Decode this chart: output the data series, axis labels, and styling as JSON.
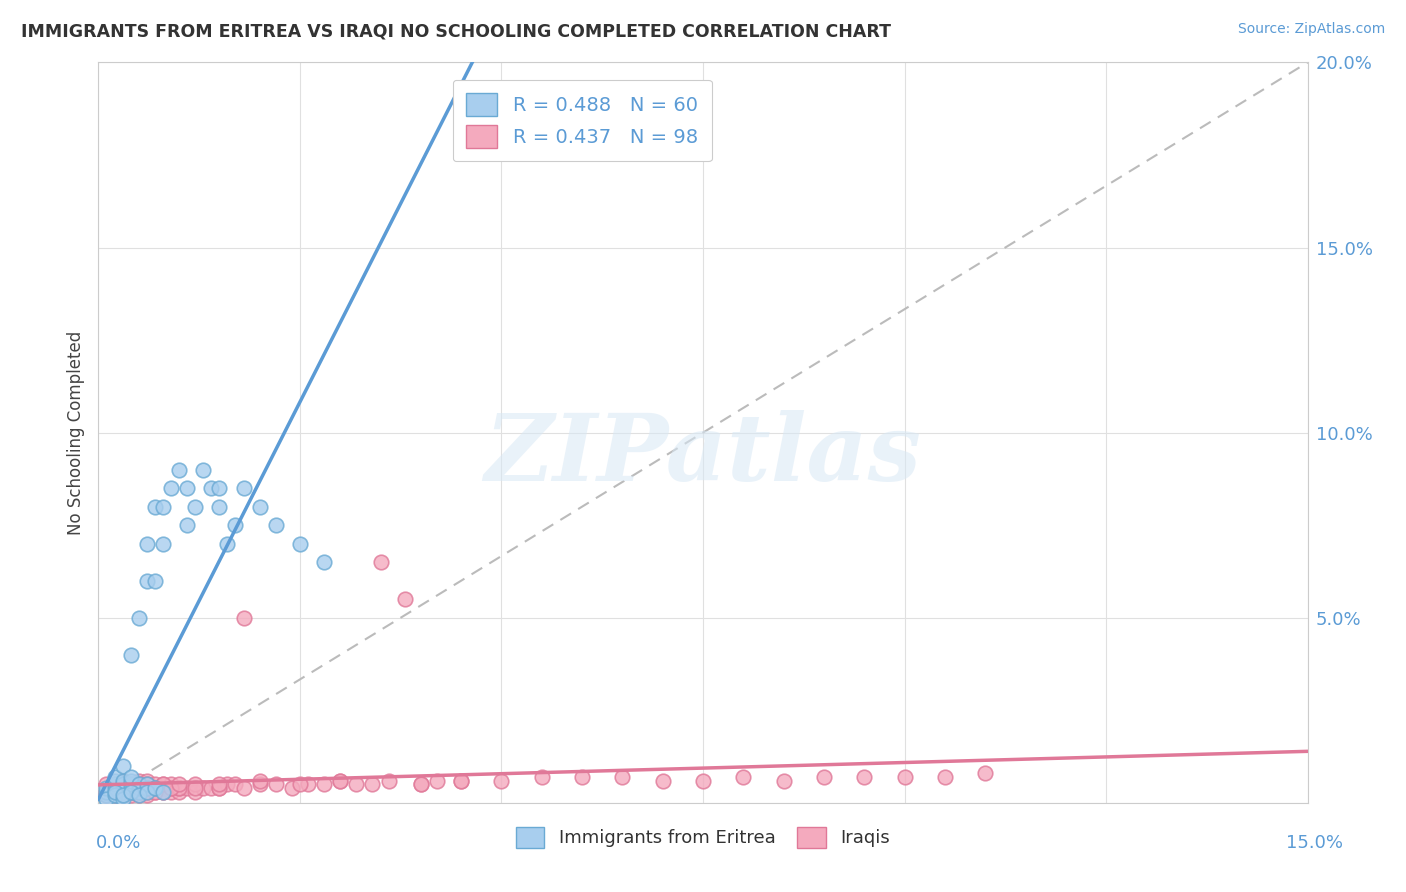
{
  "title": "IMMIGRANTS FROM ERITREA VS IRAQI NO SCHOOLING COMPLETED CORRELATION CHART",
  "source": "Source: ZipAtlas.com",
  "ylabel": "No Schooling Completed",
  "xlim": [
    0.0,
    0.15
  ],
  "ylim": [
    0.0,
    0.2
  ],
  "color_eritrea": "#A8CEEE",
  "color_eritrea_edge": "#6AAAD4",
  "color_eritrea_line": "#5B9BD5",
  "color_iraq": "#F4AABE",
  "color_iraq_edge": "#E07898",
  "color_iraq_line": "#E07898",
  "background_color": "#FFFFFF",
  "watermark_text": "ZIPatlas",
  "eritrea_x": [
    0.001,
    0.001,
    0.001,
    0.002,
    0.002,
    0.002,
    0.002,
    0.002,
    0.002,
    0.003,
    0.003,
    0.003,
    0.003,
    0.003,
    0.003,
    0.004,
    0.004,
    0.004,
    0.004,
    0.004,
    0.004,
    0.005,
    0.005,
    0.005,
    0.005,
    0.006,
    0.006,
    0.006,
    0.006,
    0.007,
    0.007,
    0.007,
    0.008,
    0.008,
    0.009,
    0.01,
    0.011,
    0.011,
    0.012,
    0.013,
    0.014,
    0.015,
    0.015,
    0.016,
    0.017,
    0.018,
    0.02,
    0.022,
    0.025,
    0.028,
    0.001,
    0.002,
    0.002,
    0.003,
    0.003,
    0.004,
    0.005,
    0.006,
    0.007,
    0.008
  ],
  "eritrea_y": [
    0.002,
    0.003,
    0.004,
    0.002,
    0.003,
    0.004,
    0.005,
    0.006,
    0.007,
    0.002,
    0.003,
    0.004,
    0.005,
    0.006,
    0.01,
    0.003,
    0.004,
    0.005,
    0.006,
    0.007,
    0.04,
    0.003,
    0.004,
    0.005,
    0.05,
    0.004,
    0.005,
    0.06,
    0.07,
    0.004,
    0.06,
    0.08,
    0.07,
    0.08,
    0.085,
    0.09,
    0.075,
    0.085,
    0.08,
    0.09,
    0.085,
    0.08,
    0.085,
    0.07,
    0.075,
    0.085,
    0.08,
    0.075,
    0.07,
    0.065,
    0.001,
    0.002,
    0.003,
    0.001,
    0.002,
    0.003,
    0.002,
    0.003,
    0.004,
    0.003
  ],
  "iraq_x": [
    0.001,
    0.001,
    0.001,
    0.002,
    0.002,
    0.002,
    0.002,
    0.003,
    0.003,
    0.003,
    0.003,
    0.003,
    0.004,
    0.004,
    0.004,
    0.004,
    0.005,
    0.005,
    0.005,
    0.005,
    0.005,
    0.006,
    0.006,
    0.006,
    0.006,
    0.006,
    0.007,
    0.007,
    0.007,
    0.008,
    0.008,
    0.008,
    0.009,
    0.009,
    0.01,
    0.01,
    0.011,
    0.012,
    0.013,
    0.014,
    0.015,
    0.016,
    0.017,
    0.018,
    0.02,
    0.022,
    0.024,
    0.026,
    0.028,
    0.03,
    0.032,
    0.034,
    0.036,
    0.038,
    0.04,
    0.042,
    0.045,
    0.05,
    0.055,
    0.06,
    0.065,
    0.07,
    0.075,
    0.08,
    0.085,
    0.09,
    0.095,
    0.1,
    0.105,
    0.11,
    0.003,
    0.004,
    0.005,
    0.006,
    0.007,
    0.008,
    0.009,
    0.01,
    0.012,
    0.015,
    0.018,
    0.02,
    0.025,
    0.03,
    0.035,
    0.04,
    0.045,
    0.002,
    0.003,
    0.004,
    0.005,
    0.006,
    0.007,
    0.008,
    0.009,
    0.01,
    0.012,
    0.015
  ],
  "iraq_y": [
    0.002,
    0.003,
    0.005,
    0.002,
    0.003,
    0.004,
    0.005,
    0.002,
    0.003,
    0.004,
    0.005,
    0.006,
    0.002,
    0.003,
    0.004,
    0.005,
    0.002,
    0.003,
    0.004,
    0.005,
    0.006,
    0.002,
    0.003,
    0.004,
    0.005,
    0.006,
    0.003,
    0.004,
    0.005,
    0.003,
    0.004,
    0.005,
    0.003,
    0.004,
    0.003,
    0.004,
    0.004,
    0.003,
    0.004,
    0.004,
    0.004,
    0.005,
    0.005,
    0.004,
    0.005,
    0.005,
    0.004,
    0.005,
    0.005,
    0.006,
    0.005,
    0.005,
    0.006,
    0.055,
    0.005,
    0.006,
    0.006,
    0.006,
    0.007,
    0.007,
    0.007,
    0.006,
    0.006,
    0.007,
    0.006,
    0.007,
    0.007,
    0.007,
    0.007,
    0.008,
    0.003,
    0.004,
    0.003,
    0.005,
    0.004,
    0.003,
    0.005,
    0.004,
    0.005,
    0.004,
    0.05,
    0.006,
    0.005,
    0.006,
    0.065,
    0.005,
    0.006,
    0.003,
    0.004,
    0.003,
    0.005,
    0.004,
    0.003,
    0.005,
    0.004,
    0.005,
    0.004,
    0.005
  ]
}
